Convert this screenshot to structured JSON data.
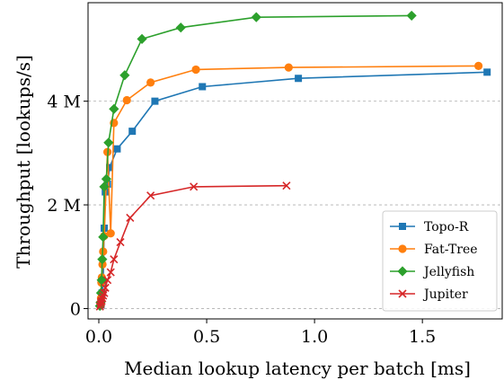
{
  "chart_data": {
    "type": "line",
    "title": "",
    "xlabel": "Median lookup latency per batch [ms]",
    "ylabel": "Throughput [lookups/s]",
    "xlim": [
      -0.05,
      1.87
    ],
    "ylim": [
      -0.2,
      5.9
    ],
    "x_ticks": [
      0.0,
      0.5,
      1.0,
      1.5
    ],
    "x_tick_labels": [
      "0.0",
      "0.5",
      "1.0",
      "1.5"
    ],
    "y_ticks": [
      0,
      2,
      4
    ],
    "y_tick_labels": [
      "0",
      "2 M",
      "4 M"
    ],
    "y_unit": "M lookups/s",
    "grid": "horizontal dashed at y ticks",
    "legend_position": "lower-right",
    "series": [
      {
        "name": "Topo-R",
        "color": "#1f77b4",
        "marker": "square",
        "x": [
          0.01,
          0.015,
          0.02,
          0.025,
          0.03,
          0.04,
          0.05,
          0.085,
          0.155,
          0.26,
          0.48,
          0.925,
          1.8
        ],
        "y": [
          0.07,
          0.3,
          0.5,
          1.55,
          2.25,
          2.4,
          2.72,
          3.08,
          3.42,
          4.0,
          4.28,
          4.44,
          4.56
        ]
      },
      {
        "name": "Fat-Tree",
        "color": "#ff7f0e",
        "marker": "circle",
        "x": [
          0.008,
          0.01,
          0.012,
          0.014,
          0.017,
          0.02,
          0.025,
          0.04,
          0.055,
          0.07,
          0.13,
          0.24,
          0.45,
          0.88,
          1.76
        ],
        "y": [
          0.1,
          0.2,
          0.5,
          0.6,
          0.85,
          1.1,
          1.4,
          3.02,
          1.45,
          3.58,
          4.02,
          4.36,
          4.61,
          4.65,
          4.68
        ]
      },
      {
        "name": "Jellyfish",
        "color": "#2ca02c",
        "marker": "diamond",
        "x": [
          0.005,
          0.008,
          0.01,
          0.013,
          0.016,
          0.02,
          0.025,
          0.035,
          0.045,
          0.07,
          0.12,
          0.2,
          0.38,
          0.73,
          1.45
        ],
        "y": [
          0.05,
          0.12,
          0.3,
          0.55,
          0.95,
          1.38,
          2.35,
          2.5,
          3.2,
          3.85,
          4.5,
          5.2,
          5.42,
          5.62,
          5.65
        ]
      },
      {
        "name": "Jupiter",
        "color": "#d62728",
        "marker": "x",
        "x": [
          0.005,
          0.008,
          0.01,
          0.013,
          0.016,
          0.02,
          0.025,
          0.03,
          0.04,
          0.055,
          0.07,
          0.1,
          0.145,
          0.24,
          0.44,
          0.87
        ],
        "y": [
          0.04,
          0.08,
          0.12,
          0.15,
          0.2,
          0.25,
          0.3,
          0.4,
          0.55,
          0.7,
          0.95,
          1.28,
          1.75,
          2.18,
          2.35,
          2.37
        ]
      }
    ]
  }
}
